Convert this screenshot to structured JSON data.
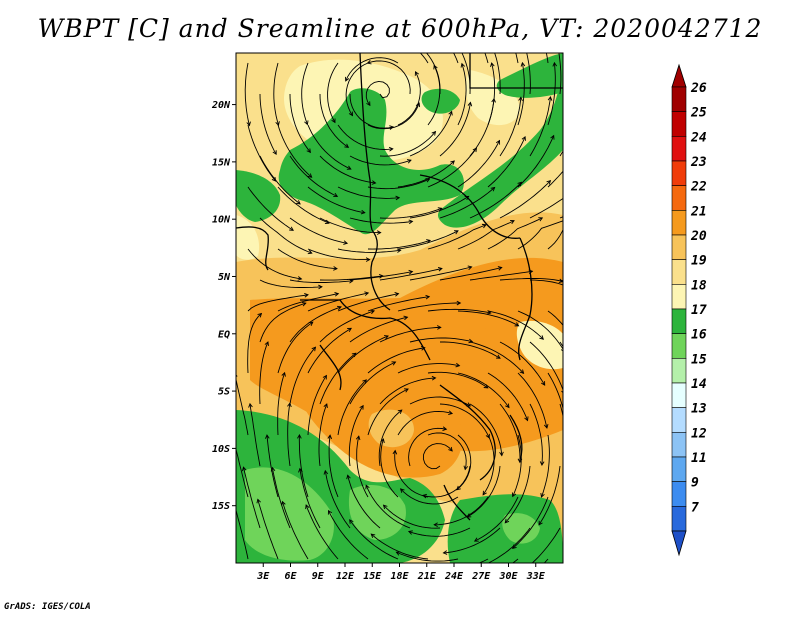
{
  "title": "WBPT [C] and Sreamline at 600hPa, VT: 2020042712",
  "credit": "GrADS: IGES/COLA",
  "map": {
    "lon_range": [
      0,
      36
    ],
    "lat_range": [
      -20,
      24.5
    ],
    "lat_ticks": [
      {
        "label": "20N",
        "value": 20
      },
      {
        "label": "15N",
        "value": 15
      },
      {
        "label": "10N",
        "value": 10
      },
      {
        "label": "5N",
        "value": 5
      },
      {
        "label": "EQ",
        "value": 0
      },
      {
        "label": "5S",
        "value": -5
      },
      {
        "label": "10S",
        "value": -10
      },
      {
        "label": "15S",
        "value": -15
      }
    ],
    "lon_ticks": [
      {
        "label": "3E",
        "value": 3
      },
      {
        "label": "6E",
        "value": 6
      },
      {
        "label": "9E",
        "value": 9
      },
      {
        "label": "12E",
        "value": 12
      },
      {
        "label": "15E",
        "value": 15
      },
      {
        "label": "18E",
        "value": 18
      },
      {
        "label": "21E",
        "value": 21
      },
      {
        "label": "24E",
        "value": 24
      },
      {
        "label": "27E",
        "value": 27
      },
      {
        "label": "30E",
        "value": 30
      },
      {
        "label": "33E",
        "value": 33
      }
    ]
  },
  "colorbar": {
    "levels": [
      {
        "label": "26",
        "color": "#a00000"
      },
      {
        "label": "25",
        "color": "#c00000"
      },
      {
        "label": "24",
        "color": "#e01010"
      },
      {
        "label": "23",
        "color": "#f03c0a"
      },
      {
        "label": "22",
        "color": "#f5690f"
      },
      {
        "label": "21",
        "color": "#f59a1e"
      },
      {
        "label": "20",
        "color": "#f7c35a"
      },
      {
        "label": "19",
        "color": "#fae08c"
      },
      {
        "label": "18",
        "color": "#fdf5b4"
      },
      {
        "label": "17",
        "color": "#2db43c"
      },
      {
        "label": "16",
        "color": "#6fd45a"
      },
      {
        "label": "15",
        "color": "#b4f0aa"
      },
      {
        "label": "14",
        "color": "#e6ffff"
      },
      {
        "label": "13",
        "color": "#b4dcff"
      },
      {
        "label": "12",
        "color": "#8cc3f5"
      },
      {
        "label": "11",
        "color": "#5ea8f0"
      },
      {
        "label": "9",
        "color": "#3c8cf0"
      },
      {
        "label": "7",
        "color": "#2869dc"
      }
    ],
    "under_color": "#1e50c8"
  },
  "field_colors": {
    "c16": "#6fd45a",
    "c17": "#2db43c",
    "c18": "#fdf5b4",
    "c19": "#fae08c",
    "c20": "#f7c35a",
    "c21": "#f59a1e"
  }
}
